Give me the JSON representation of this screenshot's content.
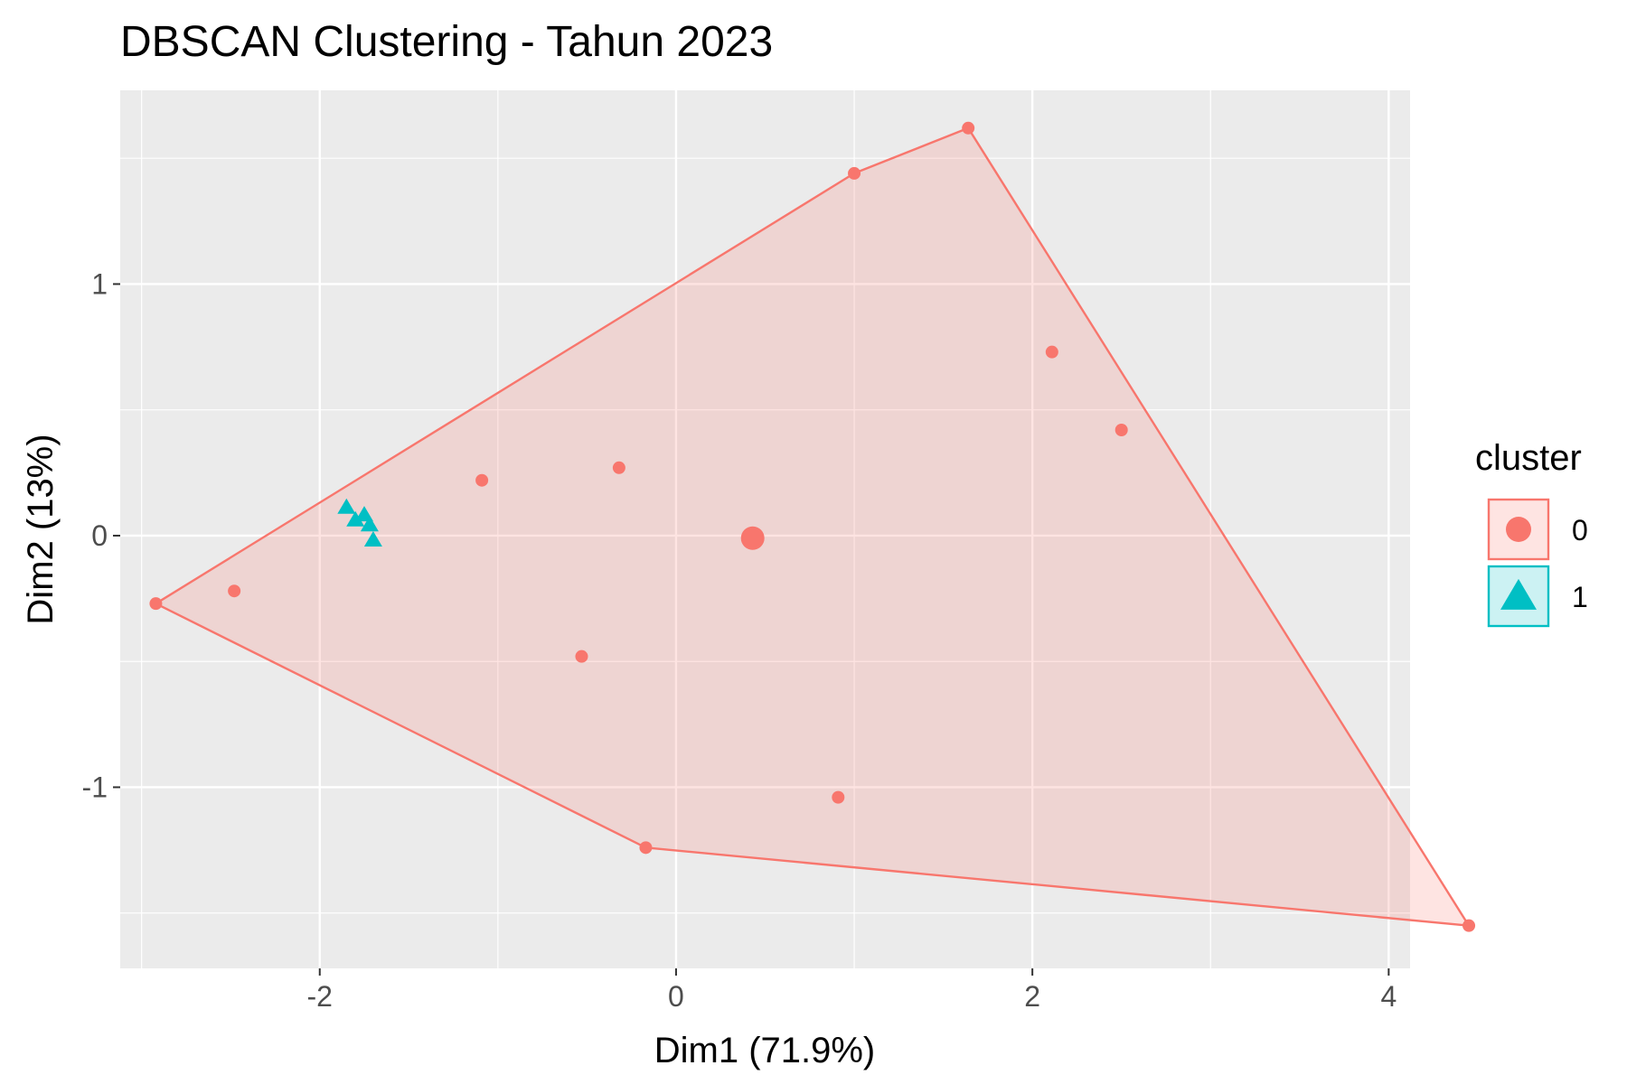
{
  "chart_data": {
    "type": "scatter",
    "title": "DBSCAN Clustering - Tahun 2023",
    "xlabel": "Dim1 (71.9%)",
    "ylabel": "Dim2 (13%)",
    "xlim": [
      -3.12,
      4.12
    ],
    "ylim": [
      -1.72,
      1.77
    ],
    "xticks": [
      -2,
      0,
      2,
      4
    ],
    "xtick_labels": [
      "-2",
      "0",
      "2",
      "4"
    ],
    "yticks": [
      -1,
      0,
      1
    ],
    "ytick_labels": [
      "-1",
      "0",
      "1"
    ],
    "grid": true,
    "legend": {
      "title": "cluster",
      "position": "right"
    },
    "series": [
      {
        "name": "0",
        "marker": "circle",
        "color": "#F8766D",
        "points": [
          {
            "x": -2.92,
            "y": -0.27
          },
          {
            "x": -2.48,
            "y": -0.22
          },
          {
            "x": -1.09,
            "y": 0.22
          },
          {
            "x": -0.32,
            "y": 0.27
          },
          {
            "x": -0.53,
            "y": -0.48
          },
          {
            "x": -0.17,
            "y": -1.24
          },
          {
            "x": 1.0,
            "y": 1.44
          },
          {
            "x": 1.64,
            "y": 1.62
          },
          {
            "x": 2.11,
            "y": 0.73
          },
          {
            "x": 2.5,
            "y": 0.42
          },
          {
            "x": 0.91,
            "y": -1.04
          },
          {
            "x": 4.45,
            "y": -1.55
          }
        ],
        "centroid": {
          "x": 0.43,
          "y": -0.01
        },
        "hull": [
          {
            "x": -2.92,
            "y": -0.27
          },
          {
            "x": 1.0,
            "y": 1.44
          },
          {
            "x": 1.64,
            "y": 1.62
          },
          {
            "x": 4.45,
            "y": -1.55
          },
          {
            "x": -0.17,
            "y": -1.24
          }
        ]
      },
      {
        "name": "1",
        "marker": "triangle",
        "color": "#00BFC4",
        "points": [
          {
            "x": -1.85,
            "y": 0.11
          },
          {
            "x": -1.8,
            "y": 0.06
          },
          {
            "x": -1.75,
            "y": 0.08
          },
          {
            "x": -1.72,
            "y": 0.04
          },
          {
            "x": -1.7,
            "y": -0.02
          }
        ]
      }
    ]
  }
}
